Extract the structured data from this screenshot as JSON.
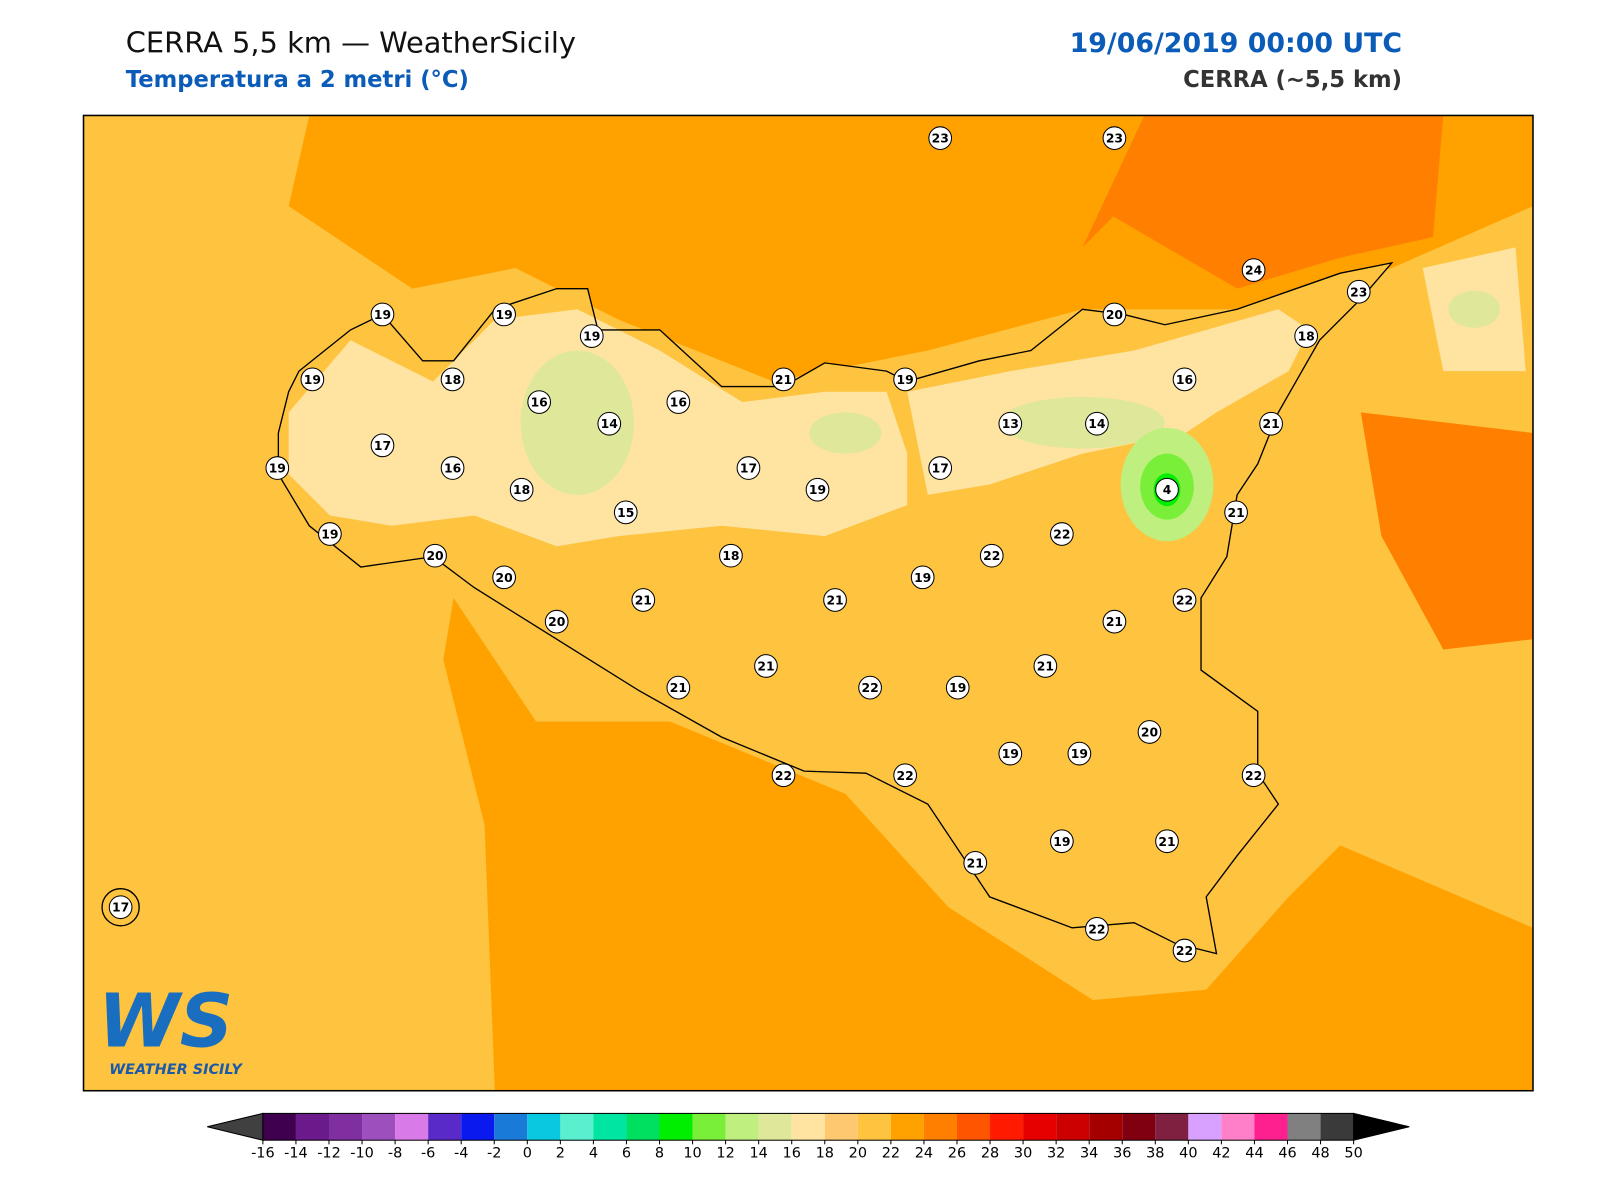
{
  "header": {
    "title": "CERRA 5,5 km — WeatherSicily",
    "subtitle": "Temperatura a 2 metri (°C)",
    "date": "19/06/2019 00:00 UTC",
    "model": "CERRA (~5,5 km)"
  },
  "logo": {
    "mark": "WS",
    "text": "WEATHER SICILY"
  },
  "stations": {
    "values": [
      23,
      23,
      24,
      23,
      18,
      20,
      19,
      19,
      19,
      19,
      18,
      16,
      14,
      16,
      21,
      19,
      16,
      13,
      14,
      21,
      17,
      19,
      16,
      18,
      17,
      19,
      17,
      4,
      21,
      15,
      19,
      20,
      20,
      18,
      22,
      22,
      19,
      20,
      21,
      21,
      22,
      21,
      21,
      21,
      22,
      19,
      21,
      20,
      19,
      19,
      22,
      22,
      22,
      19,
      21,
      21,
      17,
      22,
      22
    ]
  },
  "colorbar": {
    "ticks": [
      -16,
      -14,
      -12,
      -10,
      -8,
      -6,
      -4,
      -2,
      0,
      2,
      4,
      6,
      8,
      10,
      12,
      14,
      16,
      18,
      20,
      22,
      24,
      26,
      28,
      30,
      32,
      34,
      36,
      38,
      40,
      42,
      44,
      46,
      48,
      50
    ],
    "colors": [
      "#3f0050",
      "#6a1a8a",
      "#7f2f9f",
      "#9d4fbd",
      "#d87ae8",
      "#5a2ac8",
      "#0a1aef",
      "#1a7ad8",
      "#0ac8e0",
      "#5aefcf",
      "#00e5a0",
      "#00e060",
      "#00ef00",
      "#7aef3a",
      "#bfef7f",
      "#dfe89a",
      "#ffe3a0",
      "#fdc870",
      "#fec33f",
      "#ffa200",
      "#ff8000",
      "#ff5500",
      "#ff1a00",
      "#e60000",
      "#cc0000",
      "#a50000",
      "#800010",
      "#7f2040",
      "#d8a0ff",
      "#ff80c8",
      "#ff2090",
      "#808080",
      "#3a3a3a"
    ],
    "under": "#404040",
    "over": "#000000"
  }
}
